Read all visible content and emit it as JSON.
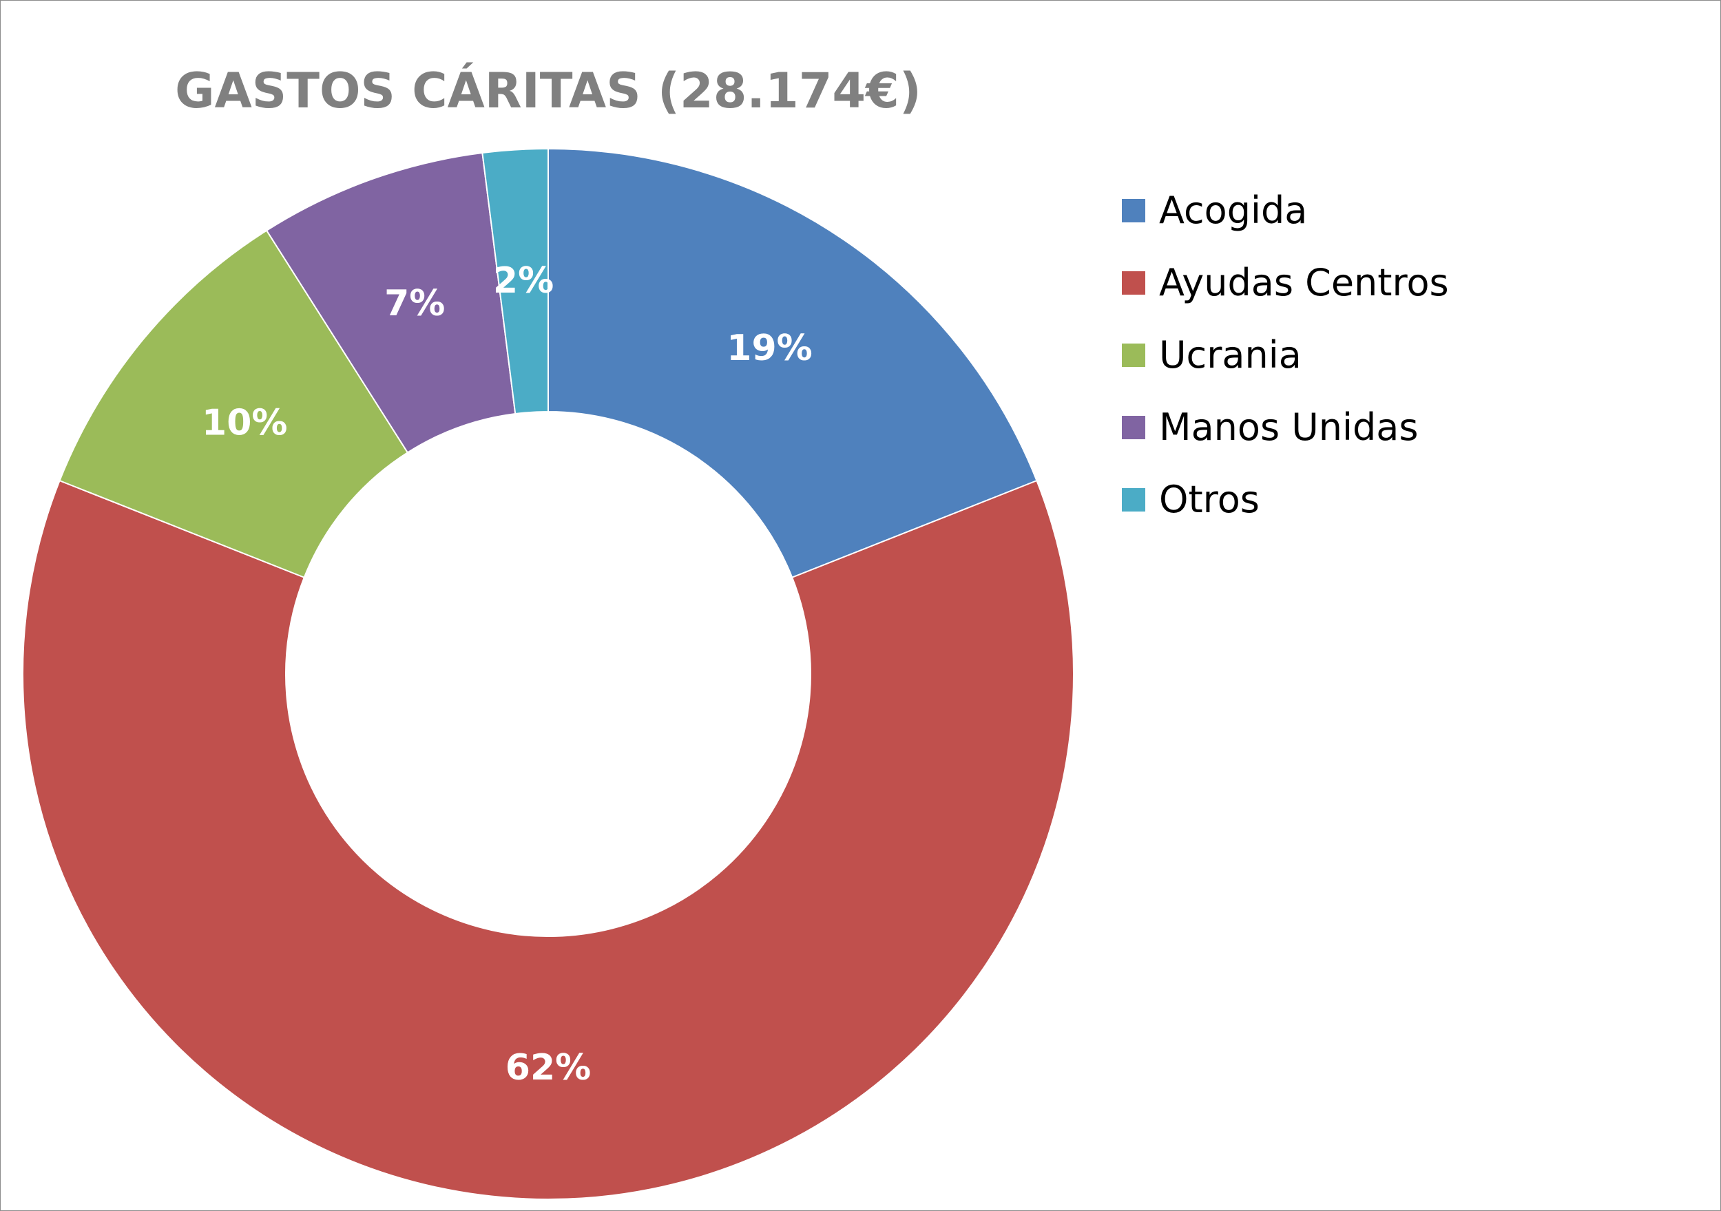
{
  "chart_data": {
    "type": "pie",
    "variant": "donut",
    "title": "GASTOS CÁRITAS (28.174€)",
    "categories": [
      "Acogida",
      "Ayudas Centros",
      "Ucrania",
      "Manos Unidas",
      "Otros"
    ],
    "values": [
      19,
      62,
      10,
      7,
      2
    ],
    "value_labels": [
      "19%",
      "62%",
      "10%",
      "7%",
      "2%"
    ],
    "units": "%",
    "colors": [
      "#4f81bd",
      "#c0504d",
      "#9bbb59",
      "#8064a2",
      "#4bacc6"
    ],
    "legend": {
      "position": "right",
      "entries": [
        "Acogida",
        "Ayudas Centros",
        "Ucrania",
        "Manos Unidas",
        "Otros"
      ]
    },
    "start_angle_deg": 0,
    "direction": "clockwise"
  }
}
